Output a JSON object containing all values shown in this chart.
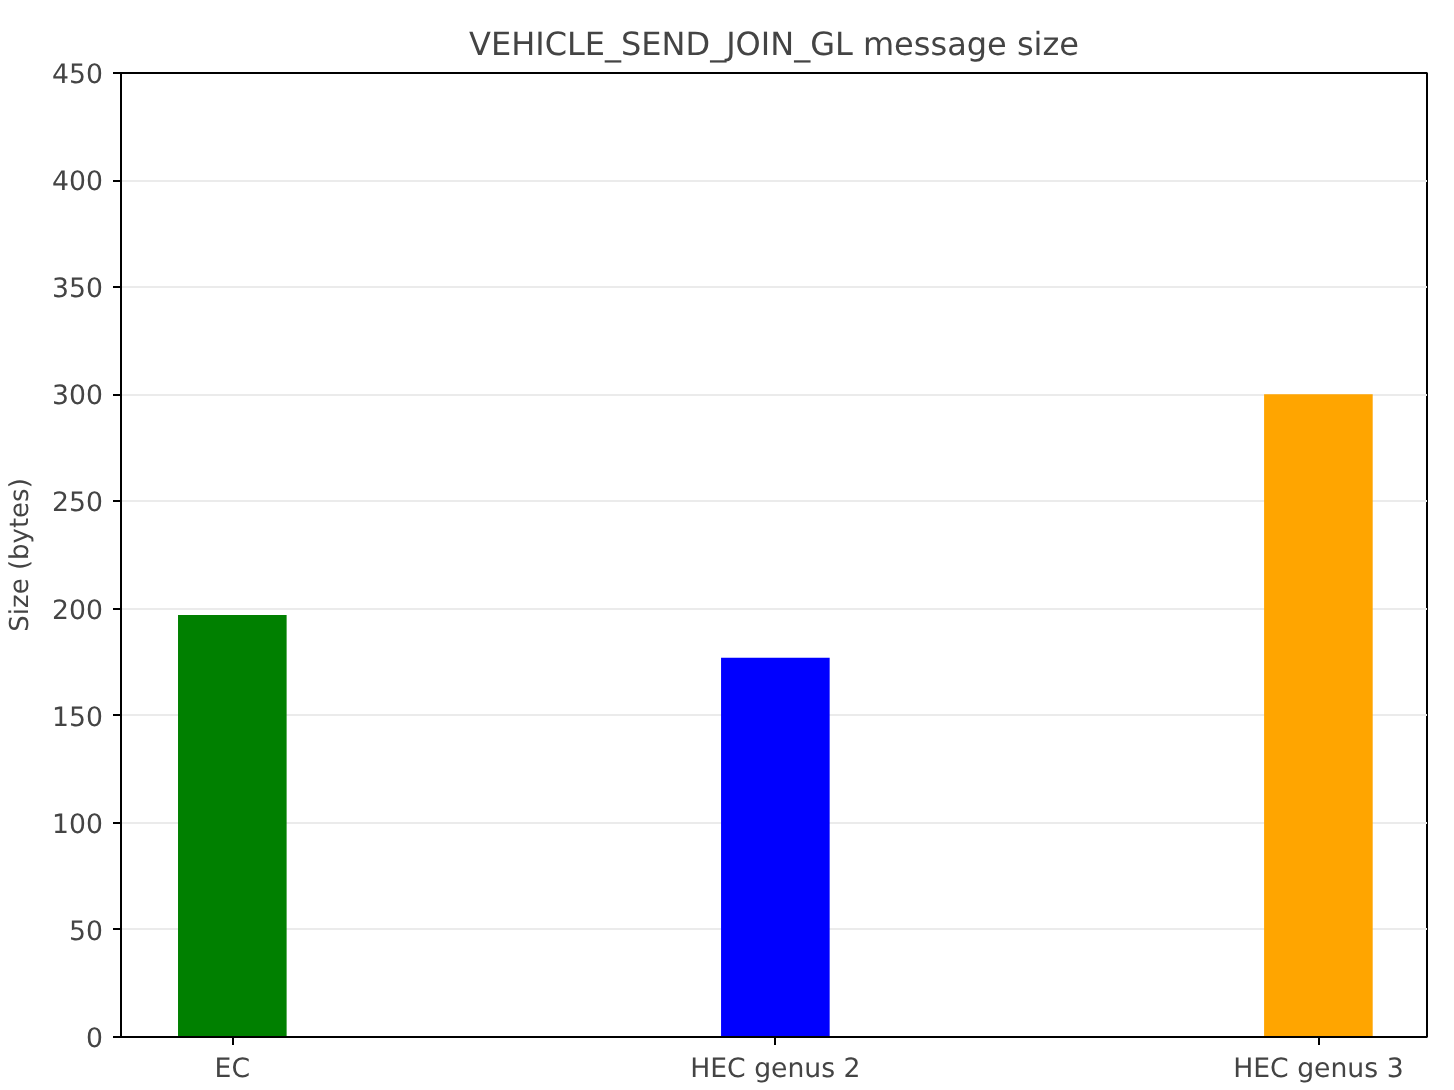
{
  "chart_data": {
    "type": "bar",
    "title": "VEHICLE_SEND_JOIN_GL message size",
    "ylabel": "Size (bytes)",
    "categories": [
      "EC",
      "HEC genus 2",
      "HEC genus 3"
    ],
    "values": [
      197,
      177,
      300
    ],
    "colors": [
      "#008000",
      "#0000ff",
      "#ffa500"
    ],
    "ylim": [
      0,
      450
    ],
    "yticks": [
      0,
      50,
      100,
      150,
      200,
      250,
      300,
      350,
      400,
      450
    ],
    "grid": "y"
  }
}
